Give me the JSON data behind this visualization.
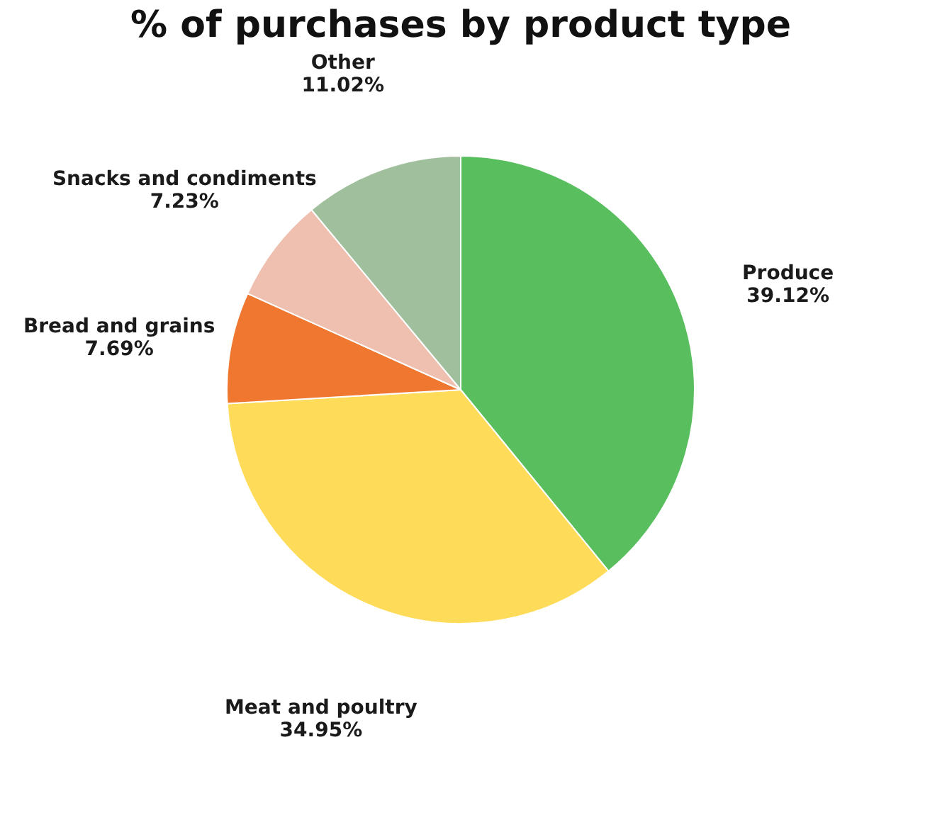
{
  "chart_data": {
    "type": "pie",
    "title": "% of purchases by product type",
    "categories": [
      "Produce",
      "Meat and poultry",
      "Bread and grains",
      "Snacks and condiments",
      "Other"
    ],
    "values": [
      39.12,
      34.95,
      7.69,
      7.23,
      11.02
    ],
    "value_labels": [
      "39.12%",
      "34.95%",
      "7.69%",
      "7.23%",
      "11.02%"
    ],
    "colors": [
      "#59bf5e",
      "#fedb58",
      "#f07730",
      "#efbfb0",
      "#a0bf9c"
    ],
    "legend": false
  }
}
